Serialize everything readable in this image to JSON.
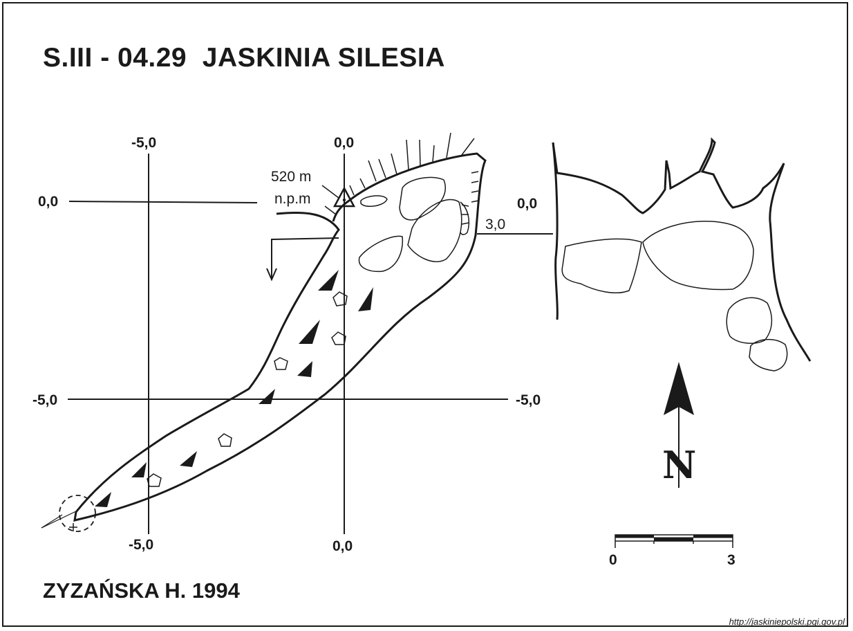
{
  "map": {
    "title": "S.III - 04.29  JASKINIA SILESIA",
    "author": "ZYZAŃSKA H. 1994",
    "source_url": "http://jaskiniepolski.pgi.gov.pl",
    "elevation": "520 m",
    "elevation_unit": "n.p.m",
    "grid_labels": {
      "top_left": "-5,0",
      "top_center": "0,0",
      "left_upper": "0,0",
      "right_upper": "0,0",
      "left_lower": "-5,0",
      "right_lower": "-5,0",
      "bottom_left": "-5,0",
      "bottom_center": "0,0"
    },
    "section_depth": "3,0",
    "north_label": "N",
    "scale": {
      "min": "0",
      "max": "3"
    }
  }
}
